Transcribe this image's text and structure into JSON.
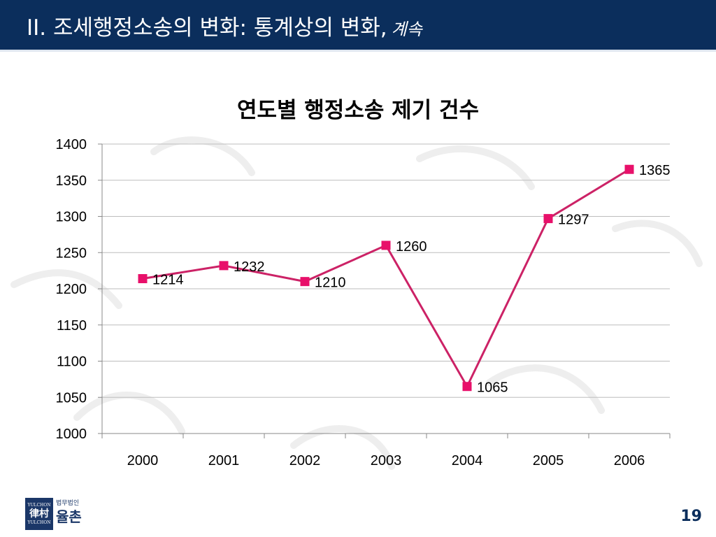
{
  "header": {
    "title": "II. 조세행정소송의 변화: 통계상의 변화,",
    "continued": "계속"
  },
  "colors": {
    "header_bg": "#0b2e5c",
    "line": "#cc2266",
    "marker": "#e8106a",
    "grid": "#bdbdbd"
  },
  "chart_data": {
    "type": "line",
    "title": "연도별 행정소송 제기 건수",
    "categories": [
      "2000",
      "2001",
      "2002",
      "2003",
      "2004",
      "2005",
      "2006"
    ],
    "series": [
      {
        "values": [
          1214,
          1232,
          1210,
          1260,
          1065,
          1297,
          1365
        ]
      }
    ],
    "data_labels": [
      "1214",
      "1232",
      "1210",
      "1260",
      "1065",
      "1297",
      "1365"
    ],
    "ylim": [
      1000,
      1400
    ],
    "yticks": [
      "1000",
      "1050",
      "1100",
      "1150",
      "1200",
      "1250",
      "1300",
      "1350",
      "1400"
    ],
    "grid": true,
    "legend": "none"
  },
  "footer": {
    "logo_eng_top": "YULCHON",
    "logo_hanja": "律村",
    "logo_eng_bottom": "YULCHON",
    "logo_sub": "법무법인",
    "logo_name": "율촌",
    "page_number": "19"
  }
}
